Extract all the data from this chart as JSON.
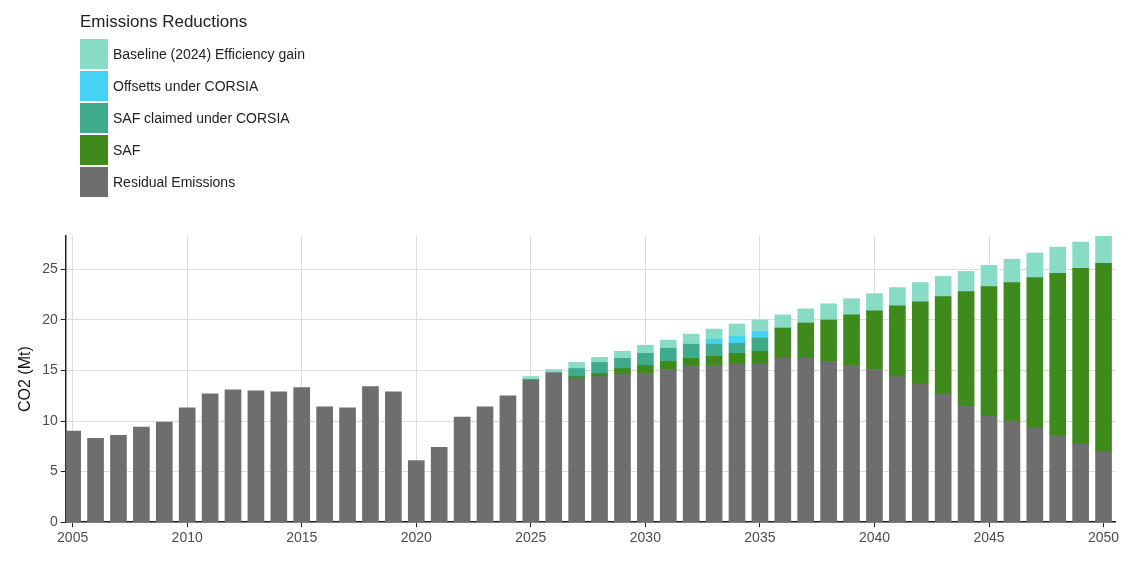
{
  "chart_data": {
    "type": "bar",
    "stacked": true,
    "ylabel": "CO2 (Mt)",
    "legend_title": "Emissions Reductions",
    "legend": "top left",
    "grid": true,
    "x": [
      2005,
      2006,
      2007,
      2008,
      2009,
      2010,
      2011,
      2012,
      2013,
      2014,
      2015,
      2016,
      2017,
      2018,
      2019,
      2020,
      2021,
      2022,
      2023,
      2024,
      2025,
      2026,
      2027,
      2028,
      2029,
      2030,
      2031,
      2032,
      2033,
      2034,
      2035,
      2036,
      2037,
      2038,
      2039,
      2040,
      2041,
      2042,
      2043,
      2044,
      2045,
      2046,
      2047,
      2048,
      2049,
      2050
    ],
    "xlim": [
      2004.7,
      2050.5
    ],
    "xticks": [
      2005,
      2010,
      2015,
      2020,
      2025,
      2030,
      2035,
      2040,
      2045,
      2050
    ],
    "ylim": [
      0,
      28.3
    ],
    "yticks": [
      0,
      5,
      10,
      15,
      20,
      25
    ],
    "series": [
      {
        "name": "Residual Emissions",
        "color": "#6e6e6e",
        "values": [
          9.0,
          8.3,
          8.6,
          9.4,
          9.9,
          11.3,
          12.7,
          13.1,
          13.0,
          12.9,
          13.3,
          11.4,
          11.3,
          13.4,
          12.9,
          6.1,
          7.4,
          10.4,
          11.4,
          12.5,
          14.0,
          14.8,
          14.2,
          14.4,
          14.6,
          14.7,
          15.1,
          15.4,
          15.5,
          15.7,
          15.7,
          16.2,
          16.2,
          15.9,
          15.5,
          15.1,
          14.4,
          13.7,
          12.7,
          11.5,
          10.5,
          10.0,
          9.3,
          8.6,
          7.8,
          6.9
        ]
      },
      {
        "name": "SAF",
        "color": "#3f8a1d",
        "values": [
          null,
          null,
          null,
          null,
          null,
          null,
          null,
          null,
          null,
          null,
          null,
          null,
          null,
          null,
          null,
          null,
          null,
          null,
          null,
          null,
          0.1,
          null,
          0.2,
          0.3,
          0.6,
          0.8,
          0.8,
          0.8,
          0.9,
          1.0,
          1.2,
          3.0,
          3.5,
          4.1,
          5.0,
          5.8,
          7.0,
          8.1,
          9.6,
          11.3,
          12.8,
          13.7,
          14.9,
          16.0,
          17.3,
          18.7
        ]
      },
      {
        "name": "SAF claimed under CORSIA",
        "color": "#3fab8c",
        "values": [
          null,
          null,
          null,
          null,
          null,
          null,
          null,
          null,
          null,
          null,
          null,
          null,
          null,
          null,
          null,
          null,
          null,
          null,
          null,
          null,
          null,
          null,
          0.8,
          1.1,
          1.0,
          1.2,
          1.3,
          1.4,
          1.2,
          1.0,
          1.3,
          null,
          null,
          null,
          null,
          null,
          null,
          null,
          null,
          null,
          null,
          null,
          null,
          null,
          null,
          null
        ]
      },
      {
        "name": "Offsetts under CORSIA",
        "color": "#45d3f5",
        "values": [
          null,
          null,
          null,
          null,
          null,
          null,
          null,
          null,
          null,
          null,
          null,
          null,
          null,
          null,
          null,
          null,
          null,
          null,
          null,
          null,
          null,
          null,
          null,
          null,
          null,
          null,
          null,
          null,
          0.5,
          0.7,
          0.6,
          null,
          null,
          null,
          null,
          null,
          null,
          null,
          null,
          null,
          null,
          null,
          null,
          null,
          null,
          null
        ]
      },
      {
        "name": "Baseline (2024) Efficiency gain",
        "color": "#88dcc6",
        "values": [
          null,
          null,
          null,
          null,
          null,
          null,
          null,
          null,
          null,
          null,
          null,
          null,
          null,
          null,
          null,
          null,
          null,
          null,
          null,
          null,
          0.3,
          0.3,
          0.6,
          0.5,
          0.7,
          0.8,
          0.8,
          1.0,
          1.0,
          1.2,
          1.2,
          1.3,
          1.4,
          1.6,
          1.6,
          1.7,
          1.8,
          1.9,
          2.0,
          2.0,
          2.1,
          2.3,
          2.4,
          2.6,
          2.6,
          2.7
        ]
      }
    ]
  }
}
